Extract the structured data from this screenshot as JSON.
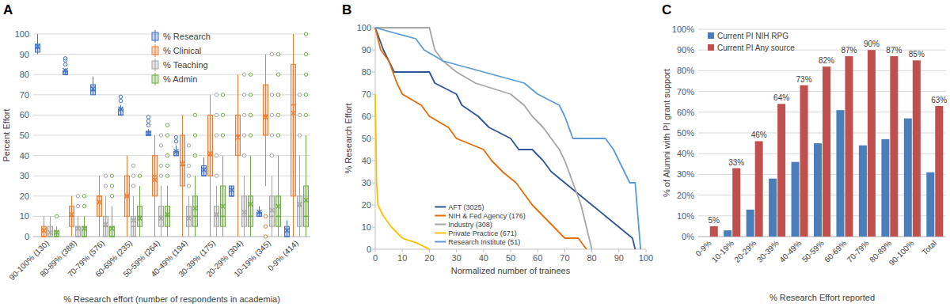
{
  "chart_data": [
    {
      "type": "box",
      "title": "A",
      "y_label": "Percent Effort",
      "x_label": "% Research effort (number of respondents in academia)",
      "categories": [
        "90-100% (130)",
        "80-89% (388)",
        "70-79% (576)",
        "60-69% (235)",
        "50-59% (264)",
        "40-49% (194)",
        "30-39% (175)",
        "20-29% (304)",
        "10-19% (345)",
        "0-9% (414)"
      ],
      "ylim": [
        0,
        100
      ],
      "yticks": [
        0,
        10,
        20,
        30,
        40,
        50,
        60,
        70,
        80,
        90,
        100
      ],
      "grid": true,
      "legend": "top",
      "series": [
        {
          "name": "% Research",
          "color": "#4472c4",
          "min": [
            90,
            80,
            70,
            60,
            50,
            40,
            30,
            20,
            10,
            0
          ],
          "q1": [
            91,
            80,
            70,
            60,
            50,
            40,
            30,
            20,
            10,
            0
          ],
          "median": [
            93,
            80,
            72,
            60,
            50,
            40,
            30,
            20,
            10,
            0
          ],
          "q3": [
            95,
            82,
            75,
            63,
            52,
            42,
            35,
            25,
            12,
            5
          ],
          "max": [
            100,
            83,
            79,
            65,
            53,
            45,
            39,
            25,
            15,
            8
          ],
          "mean": [
            94,
            82,
            73,
            63,
            51,
            42,
            33,
            23,
            12,
            3
          ],
          "outliers": [
            [],
            [
              85,
              87,
              88
            ],
            [],
            [
              67,
              69
            ],
            [
              55,
              57,
              59
            ],
            [
              47,
              49
            ],
            [],
            [],
            [],
            []
          ]
        },
        {
          "name": "% Clinical",
          "color": "#ed7d31",
          "min": [
            0,
            0,
            0,
            0,
            0,
            0,
            0,
            0,
            25,
            0
          ],
          "q1": [
            0,
            5,
            10,
            10,
            20,
            25,
            30,
            40,
            50,
            20
          ],
          "median": [
            0,
            10,
            20,
            20,
            30,
            35,
            40,
            50,
            60,
            65
          ],
          "q3": [
            5,
            15,
            20,
            30,
            40,
            50,
            60,
            60,
            75,
            85
          ],
          "max": [
            10,
            20,
            30,
            40,
            50,
            60,
            70,
            80,
            90,
            100
          ],
          "mean": [
            3,
            11,
            17,
            20,
            28,
            36,
            41,
            49,
            59,
            61
          ],
          "outliers": [
            [],
            [],
            [],
            [],
            [],
            [],
            [],
            [],
            [
              0,
              5,
              10
            ],
            []
          ]
        },
        {
          "name": "% Teaching",
          "color": "#a5a5a5",
          "min": [
            0,
            0,
            0,
            0,
            0,
            0,
            0,
            0,
            0,
            0
          ],
          "q1": [
            0,
            0,
            0,
            0,
            5,
            5,
            5,
            5,
            5,
            5
          ],
          "median": [
            0,
            0,
            5,
            5,
            10,
            10,
            10,
            10,
            10,
            15
          ],
          "q3": [
            5,
            5,
            10,
            10,
            15,
            15,
            15,
            20,
            20,
            20
          ],
          "max": [
            10,
            10,
            20,
            20,
            25,
            20,
            25,
            30,
            30,
            40
          ],
          "mean": [
            2,
            4,
            6,
            8,
            9,
            9,
            11,
            12,
            13,
            16
          ],
          "outliers": [
            [],
            [
              15,
              20
            ],
            [
              25,
              30
            ],
            [
              25,
              30,
              35
            ],
            [
              30,
              35,
              45,
              50
            ],
            [
              25,
              30,
              35,
              45
            ],
            [
              30,
              40,
              50,
              60,
              70
            ],
            [
              40,
              50,
              60,
              70,
              80
            ],
            [
              40,
              50,
              60,
              70,
              90
            ],
            [
              50,
              60,
              70
            ]
          ]
        },
        {
          "name": "% Admin",
          "color": "#70ad47",
          "min": [
            0,
            0,
            0,
            0,
            0,
            0,
            0,
            0,
            0,
            0
          ],
          "q1": [
            0,
            0,
            0,
            5,
            5,
            5,
            5,
            5,
            5,
            5
          ],
          "median": [
            0,
            0,
            0,
            10,
            10,
            10,
            10,
            10,
            10,
            10
          ],
          "q3": [
            3,
            5,
            5,
            15,
            15,
            20,
            25,
            20,
            20,
            25
          ],
          "max": [
            5,
            10,
            15,
            25,
            25,
            30,
            40,
            40,
            40,
            50
          ],
          "mean": [
            2,
            4,
            4,
            9,
            11,
            14,
            15,
            16,
            15,
            18
          ],
          "outliers": [
            [
              10
            ],
            [
              15,
              20
            ],
            [
              20,
              25,
              30
            ],
            [
              30
            ],
            [
              30,
              35,
              40,
              50,
              55
            ],
            [
              40,
              50,
              60
            ],
            [
              50,
              60,
              70
            ],
            [
              50,
              60,
              70,
              80
            ],
            [
              50,
              60,
              70,
              80,
              90
            ],
            [
              60,
              70,
              80,
              90,
              100
            ]
          ]
        }
      ]
    },
    {
      "type": "line",
      "title": "B",
      "y_label": "% Research Effort",
      "x_label": "Normalized number of trainees",
      "xlim": [
        0,
        100
      ],
      "xticks": [
        0,
        10,
        20,
        30,
        40,
        50,
        60,
        70,
        80,
        90,
        100
      ],
      "ylim": [
        0,
        100
      ],
      "yticks": [
        0,
        10,
        20,
        30,
        40,
        50,
        60,
        70,
        80,
        90,
        100
      ],
      "grid": false,
      "legend": "bottom-left",
      "series": [
        {
          "name": "AFT (3025)",
          "color": "#2f5597",
          "x": [
            0,
            3,
            7,
            20,
            22,
            30,
            32,
            38,
            42,
            50,
            53,
            58,
            62,
            65,
            70,
            75,
            80,
            85,
            90,
            95,
            96
          ],
          "values": [
            100,
            90,
            80,
            80,
            75,
            70,
            65,
            60,
            55,
            50,
            45,
            45,
            40,
            35,
            30,
            25,
            20,
            15,
            10,
            5,
            0
          ]
        },
        {
          "name": "NIH & Fed Agency (176)",
          "color": "#e46c0a",
          "x": [
            0,
            2,
            5,
            8,
            10,
            17,
            20,
            27,
            30,
            40,
            43,
            47,
            52,
            55,
            58,
            62,
            66,
            70,
            75,
            78
          ],
          "values": [
            100,
            90,
            85,
            75,
            70,
            65,
            60,
            55,
            50,
            45,
            40,
            35,
            30,
            25,
            20,
            15,
            10,
            5,
            5,
            0
          ]
        },
        {
          "name": "Industry (308)",
          "color": "#a6a6a6",
          "x": [
            0,
            20,
            22,
            25,
            30,
            37,
            50,
            55,
            58,
            62,
            65,
            68,
            70,
            73,
            76,
            78,
            80
          ],
          "values": [
            100,
            100,
            90,
            85,
            80,
            75,
            70,
            65,
            60,
            55,
            50,
            45,
            40,
            30,
            20,
            10,
            0
          ]
        },
        {
          "name": "Private Practice (671)",
          "color": "#ffc000",
          "x": [
            0,
            0.5,
            1,
            3,
            6,
            10,
            15,
            20
          ],
          "values": [
            70,
            30,
            20,
            15,
            10,
            5,
            3,
            0
          ]
        },
        {
          "name": "Research Institute (51)",
          "color": "#5b9bd5",
          "x": [
            0,
            15,
            18,
            25,
            40,
            55,
            60,
            68,
            70,
            73,
            85,
            88,
            90,
            94,
            96,
            98
          ],
          "values": [
            100,
            95,
            90,
            85,
            80,
            75,
            70,
            65,
            60,
            50,
            50,
            45,
            40,
            30,
            30,
            0
          ]
        }
      ]
    },
    {
      "type": "bar",
      "title": "C",
      "y_label": "% of Alumni with PI grant support",
      "x_label": "% Research Effort reported",
      "categories": [
        "0-9%",
        "10-19%",
        "20-29%",
        "30-39%",
        "40-49%",
        "50-59%",
        "60-69%",
        "70-79%",
        "80-89%",
        "90-100%",
        "Total"
      ],
      "ylim": [
        0,
        100
      ],
      "yticks": [
        {
          "value": 0,
          "label": "0%"
        },
        {
          "value": 10,
          "label": "10%"
        },
        {
          "value": 20,
          "label": "20%"
        },
        {
          "value": 30,
          "label": "30%"
        },
        {
          "value": 40,
          "label": "40%"
        },
        {
          "value": 50,
          "label": "50%"
        },
        {
          "value": 60,
          "label": "60%"
        },
        {
          "value": 70,
          "label": "70%"
        },
        {
          "value": 80,
          "label": "80%"
        },
        {
          "value": 90,
          "label": "90%"
        },
        {
          "value": 100,
          "label": "100%"
        }
      ],
      "grid": true,
      "legend": "top-left",
      "data_labels": true,
      "series": [
        {
          "name": "Current PI NIH RPG",
          "color": "#4a7ebb",
          "values": [
            0,
            3,
            13,
            28,
            36,
            45,
            61,
            44,
            47,
            57,
            31
          ]
        },
        {
          "name": "Current PI Any source",
          "color": "#c0504d",
          "values": [
            5,
            33,
            46,
            64,
            73,
            82,
            87,
            90,
            87,
            85,
            63
          ],
          "value_labels": [
            "5%",
            "33%",
            "46%",
            "64%",
            "73%",
            "82%",
            "87%",
            "90%",
            "87%",
            "85%",
            "63%"
          ]
        }
      ]
    }
  ]
}
